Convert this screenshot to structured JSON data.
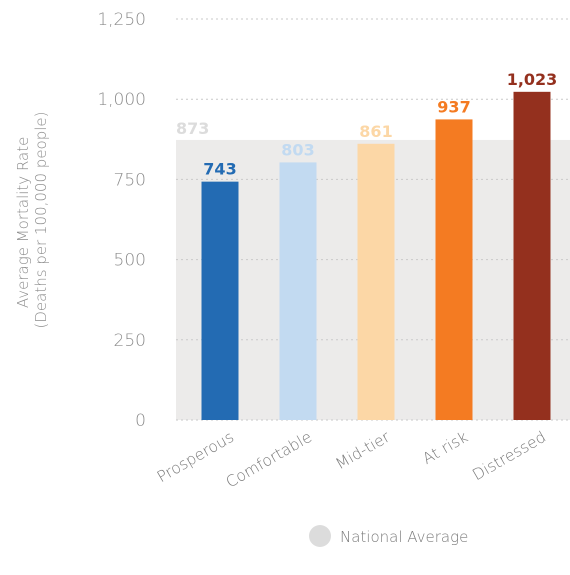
{
  "chart_data": {
    "type": "bar",
    "categories": [
      "Prosperous",
      "Comfortable",
      "Mid-tier",
      "At risk",
      "Distressed"
    ],
    "values": [
      743,
      803,
      861,
      937,
      1023
    ],
    "value_labels": [
      "743",
      "803",
      "861",
      "937",
      "1,023"
    ],
    "colors": [
      "#236bb3",
      "#c2daf1",
      "#fcd7a6",
      "#f47b22",
      "#94301e"
    ],
    "value_label_colors": [
      "#236bb3",
      "#c2daf1",
      "#fcd7a6",
      "#f47b22",
      "#94301e"
    ],
    "national_average": {
      "value": 873,
      "label": "873",
      "color": "#ecebea"
    },
    "ylabel_line1": "Average Mortality Rate",
    "ylabel_line2": "(Deaths per 100,000 people)",
    "ylim": [
      0,
      1250
    ],
    "yticks": [
      0,
      250,
      500,
      750,
      1000,
      1250
    ],
    "ytick_labels": [
      "0",
      "250",
      "500",
      "750",
      "1,000",
      "1,250"
    ],
    "grid": true,
    "legend": {
      "label": "National Average",
      "color": "#dcdcdc",
      "placement": "bottom-center"
    }
  }
}
